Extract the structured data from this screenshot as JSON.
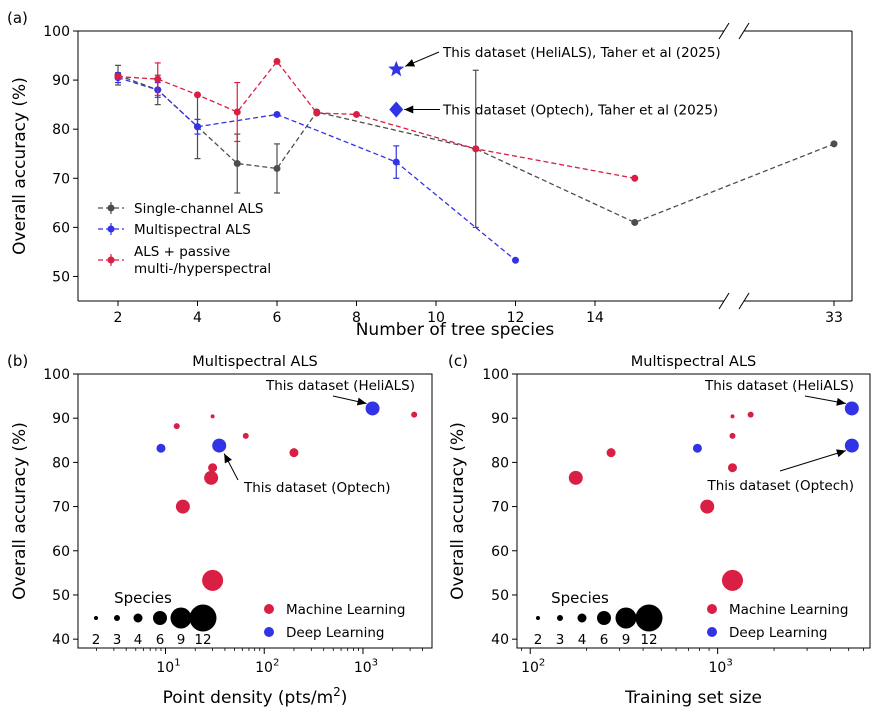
{
  "chart_data": [
    {
      "panel_label": "(a)",
      "type": "line",
      "xlabel": "Number of tree species",
      "ylabel": "Overall accuracy (%)",
      "ylim": [
        45,
        100
      ],
      "x_ticks": [
        "2",
        "4",
        "6",
        "8",
        "10",
        "12",
        "14",
        "33"
      ],
      "y_ticks": [
        50,
        60,
        70,
        80,
        90,
        100
      ],
      "x_axis_break": "between 15 and 33",
      "legend_position": "lower-left",
      "series": [
        {
          "name": "Single-channel ALS",
          "color": "#4d4d4d",
          "points": [
            {
              "x": 2,
              "y": 91,
              "err": 2
            },
            {
              "x": 3,
              "y": 88,
              "err": 3
            },
            {
              "x": 4,
              "y": 80.5,
              "err": 6.5
            },
            {
              "x": 5,
              "y": 73,
              "err": 6
            },
            {
              "x": 6,
              "y": 72,
              "err": 5
            },
            {
              "x": 7,
              "y": 83.5
            },
            {
              "x": 11,
              "y": 76,
              "err": 16
            },
            {
              "x": 15,
              "y": 61
            },
            {
              "x": 33,
              "y": 77
            }
          ]
        },
        {
          "name": "Multispectral ALS",
          "color": "#3333e6",
          "points": [
            {
              "x": 2,
              "y": 90.5,
              "err": 1
            },
            {
              "x": 3,
              "y": 88,
              "err": 1.5
            },
            {
              "x": 4,
              "y": 80.5,
              "err": 1.5
            },
            {
              "x": 6,
              "y": 83
            },
            {
              "x": 9,
              "y": 73.3,
              "err": 3.3
            },
            {
              "x": 12,
              "y": 53.3
            }
          ]
        },
        {
          "name": "ALS + passive\n multi-/hyperspectral",
          "color": "#d91f43",
          "points": [
            {
              "x": 2,
              "y": 90.7
            },
            {
              "x": 3,
              "y": 90.2,
              "err": 3.3
            },
            {
              "x": 4,
              "y": 87
            },
            {
              "x": 5,
              "y": 83.5,
              "err": 6
            },
            {
              "x": 6,
              "y": 93.8
            },
            {
              "x": 7,
              "y": 83.3
            },
            {
              "x": 8,
              "y": 83
            },
            {
              "x": 11,
              "y": 76
            },
            {
              "x": 15,
              "y": 70
            }
          ]
        }
      ],
      "highlights": [
        {
          "x": 9,
          "y": 92.2,
          "marker": "star",
          "label": "This dataset (HeliALS), Taher et al (2025)"
        },
        {
          "x": 9,
          "y": 84,
          "marker": "diamond",
          "label": "This dataset (Optech), Taher et al (2025)"
        }
      ]
    },
    {
      "panel_label": "(b)",
      "type": "scatter",
      "title": "Multispectral ALS",
      "xlabel": "Point density (pts/m",
      "xlabel_sup": "2",
      "xlabel_end": ")",
      "ylabel": "Overall accuracy (%)",
      "x_scale": "log",
      "xlim": [
        1.3,
        5000
      ],
      "ylim": [
        38,
        100
      ],
      "y_ticks": [
        40,
        50,
        60,
        70,
        80,
        90,
        100
      ],
      "x_ticks": [
        {
          "base": "10",
          "exp": "1",
          "value": 10
        },
        {
          "base": "10",
          "exp": "2",
          "value": 100
        },
        {
          "base": "10",
          "exp": "3",
          "value": 1000
        }
      ],
      "points": [
        {
          "x": 13,
          "y": 88.2,
          "species": 3,
          "method": "Machine Learning"
        },
        {
          "x": 30,
          "y": 90.4,
          "species": 2,
          "method": "Machine Learning"
        },
        {
          "x": 65,
          "y": 86,
          "species": 3,
          "method": "Machine Learning"
        },
        {
          "x": 200,
          "y": 82.2,
          "species": 4,
          "method": "Machine Learning"
        },
        {
          "x": 3300,
          "y": 90.8,
          "species": 3,
          "method": "Machine Learning"
        },
        {
          "x": 30,
          "y": 78.8,
          "species": 4,
          "method": "Machine Learning"
        },
        {
          "x": 29,
          "y": 76.5,
          "species": 6,
          "method": "Machine Learning"
        },
        {
          "x": 15,
          "y": 70,
          "species": 6,
          "method": "Machine Learning"
        },
        {
          "x": 30,
          "y": 53.3,
          "species": 9,
          "method": "Machine Learning"
        },
        {
          "x": 9,
          "y": 83.2,
          "species": 4,
          "method": "Deep Learning"
        },
        {
          "x": 35,
          "y": 83.8,
          "species": 6,
          "method": "Deep Learning"
        },
        {
          "x": 1250,
          "y": 92.2,
          "species": 6,
          "method": "Deep Learning"
        }
      ],
      "annotations": [
        {
          "text": "This dataset (HeliALS)",
          "x": 1250,
          "y": 92.2
        },
        {
          "text": "This dataset (Optech)",
          "x": 35,
          "y": 83.8
        }
      ]
    },
    {
      "panel_label": "(c)",
      "type": "scatter",
      "title": "Multispectral ALS",
      "xlabel": "Training set size",
      "ylabel": "Overall accuracy (%)",
      "x_scale": "log",
      "xlim": [
        85,
        6500
      ],
      "ylim": [
        38,
        100
      ],
      "y_ticks": [
        40,
        50,
        60,
        70,
        80,
        90,
        100
      ],
      "x_ticks": [
        {
          "base": "10",
          "exp": "2",
          "value": 100
        },
        {
          "base": "10",
          "exp": "3",
          "value": 1000
        }
      ],
      "points": [
        {
          "x": 1200,
          "y": 90.4,
          "species": 2,
          "method": "Machine Learning"
        },
        {
          "x": 1500,
          "y": 90.8,
          "species": 3,
          "method": "Machine Learning"
        },
        {
          "x": 1200,
          "y": 86,
          "species": 3,
          "method": "Machine Learning"
        },
        {
          "x": 270,
          "y": 82.2,
          "species": 4,
          "method": "Machine Learning"
        },
        {
          "x": 1200,
          "y": 78.8,
          "species": 4,
          "method": "Machine Learning"
        },
        {
          "x": 175,
          "y": 76.5,
          "species": 6,
          "method": "Machine Learning"
        },
        {
          "x": 880,
          "y": 70,
          "species": 6,
          "method": "Machine Learning"
        },
        {
          "x": 1200,
          "y": 53.3,
          "species": 9,
          "method": "Machine Learning"
        },
        {
          "x": 780,
          "y": 83.2,
          "species": 4,
          "method": "Deep Learning"
        },
        {
          "x": 5200,
          "y": 92.2,
          "species": 6,
          "method": "Deep Learning"
        },
        {
          "x": 5200,
          "y": 83.8,
          "species": 6,
          "method": "Deep Learning"
        }
      ],
      "annotations": [
        {
          "text": "This dataset (HeliALS)",
          "x": 5200,
          "y": 92.2
        },
        {
          "text": "This dataset (Optech)",
          "x": 5200,
          "y": 83.8
        }
      ]
    }
  ],
  "size_legend": {
    "title": "Species",
    "values": [
      "2",
      "3",
      "4",
      "6",
      "9",
      "12"
    ]
  },
  "method_legend": [
    {
      "label": "Machine Learning",
      "color": "#d91f43"
    },
    {
      "label": "Deep Learning",
      "color": "#3333e6"
    }
  ]
}
